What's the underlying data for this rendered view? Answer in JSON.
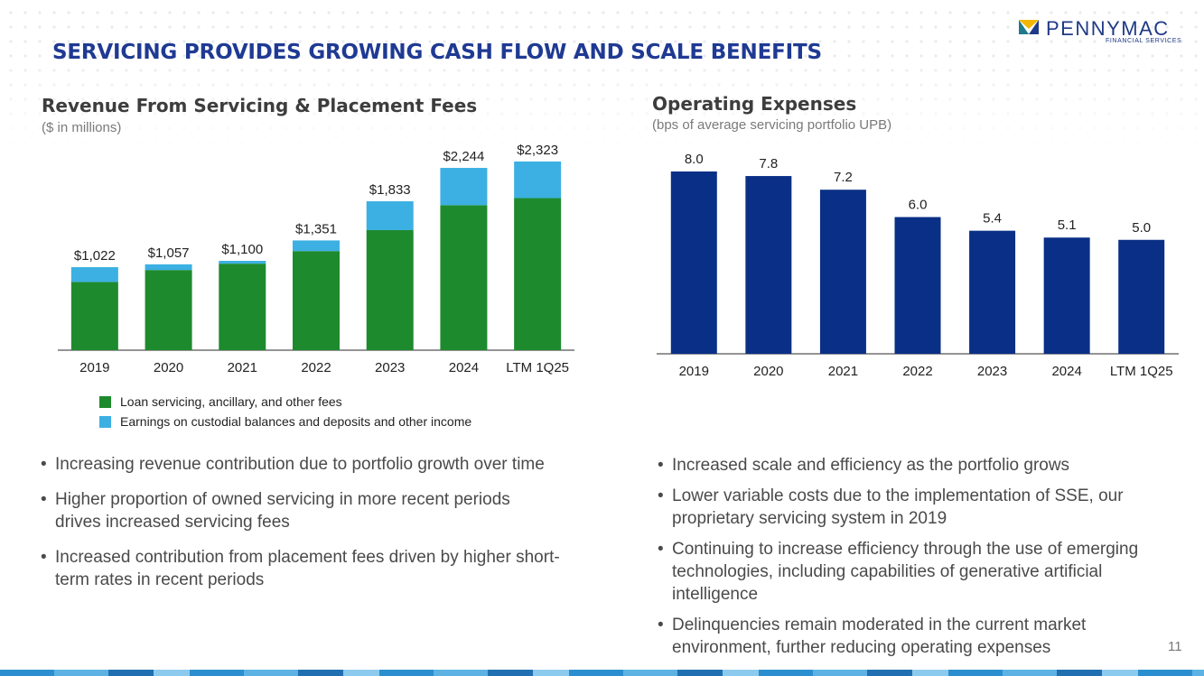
{
  "brand": {
    "name": "PENNYMAC",
    "tagline": "FINANCIAL SERVICES",
    "colors": {
      "navy": "#1f3a93",
      "green": "#1e8a2e",
      "light_blue": "#3cb0e2",
      "dark_blue": "#0a2f86",
      "gold": "#f2b705",
      "teal": "#1f7a8c"
    }
  },
  "slide": {
    "title": "SERVICING PROVIDES GROWING CASH FLOW AND SCALE BENEFITS",
    "page_number": "11"
  },
  "left_panel": {
    "title": "Revenue From Servicing & Placement Fees",
    "subtitle": "($ in millions)",
    "legend": [
      {
        "label": "Loan servicing, ancillary, and other fees",
        "color": "#1e8a2e"
      },
      {
        "label": "Earnings on custodial balances and deposits and other income",
        "color": "#3cb0e2"
      }
    ],
    "bullets": [
      "Increasing revenue contribution due to portfolio growth over time",
      "Higher proportion of owned servicing in more recent periods drives increased servicing fees",
      "Increased contribution from placement fees driven by higher short-term rates in recent periods"
    ]
  },
  "right_panel": {
    "title": "Operating Expenses",
    "subtitle": "(bps of average servicing portfolio UPB)",
    "bullets": [
      "Increased scale and efficiency as the portfolio grows",
      "Lower variable costs due to the implementation of SSE, our proprietary servicing system in 2019",
      "Continuing to increase efficiency through the use of emerging technologies, including capabilities of generative artificial intelligence",
      "Delinquencies remain moderated in the current market environment, further reducing operating expenses"
    ]
  },
  "chart_data": [
    {
      "type": "bar",
      "stacked": true,
      "title": "Revenue From Servicing & Placement Fees",
      "ylabel": "($ in millions)",
      "categories": [
        "2019",
        "2020",
        "2021",
        "2022",
        "2023",
        "2024",
        "LTM 1Q25"
      ],
      "series": [
        {
          "name": "Loan servicing, ancillary, and other fees",
          "values": [
            840,
            987,
            1065,
            1220,
            1478,
            1785,
            1872
          ],
          "color": "#1e8a2e"
        },
        {
          "name": "Earnings on custodial balances and deposits and other income",
          "values": [
            182,
            70,
            35,
            131,
            355,
            459,
            451
          ],
          "color": "#3cb0e2"
        }
      ],
      "totals": [
        1022,
        1057,
        1100,
        1351,
        1833,
        2244,
        2323
      ],
      "total_labels": [
        "$1,022",
        "$1,057",
        "$1,100",
        "$1,351",
        "$1,833",
        "$2,244",
        "$2,323"
      ],
      "ylim": [
        0,
        2500
      ]
    },
    {
      "type": "bar",
      "title": "Operating Expenses",
      "ylabel": "(bps of average servicing portfolio UPB)",
      "categories": [
        "2019",
        "2020",
        "2021",
        "2022",
        "2023",
        "2024",
        "LTM 1Q25"
      ],
      "values": [
        8.0,
        7.8,
        7.2,
        6.0,
        5.4,
        5.1,
        5.0
      ],
      "value_labels": [
        "8.0",
        "7.8",
        "7.2",
        "6.0",
        "5.4",
        "5.1",
        "5.0"
      ],
      "color": "#0a2f86",
      "ylim": [
        0,
        8.0
      ]
    }
  ]
}
